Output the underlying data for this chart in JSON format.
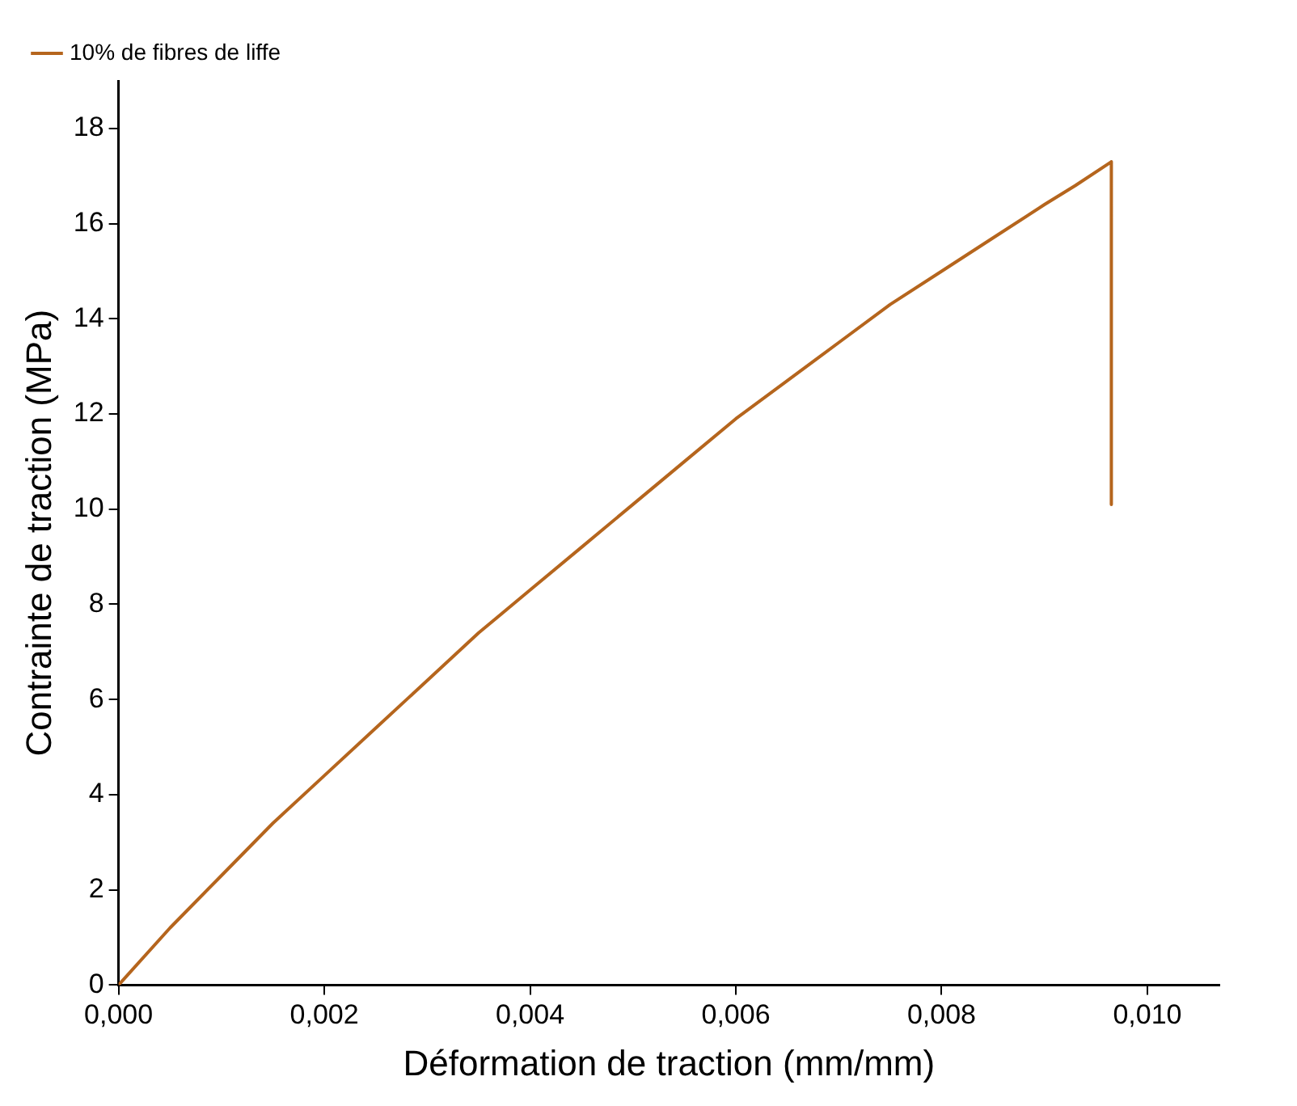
{
  "chart_data": {
    "type": "line",
    "xlabel": "Déformation de traction (mm/mm)",
    "ylabel": "Contrainte de traction (MPa)",
    "xlim": [
      0,
      0.0107
    ],
    "ylim": [
      0,
      19
    ],
    "xticks": [
      {
        "value": 0,
        "label": "0,000"
      },
      {
        "value": 0.002,
        "label": "0,002"
      },
      {
        "value": 0.004,
        "label": "0,004"
      },
      {
        "value": 0.006,
        "label": "0,006"
      },
      {
        "value": 0.008,
        "label": "0,008"
      },
      {
        "value": 0.01,
        "label": "0,010"
      }
    ],
    "yticks": [
      0,
      2,
      4,
      6,
      8,
      10,
      12,
      14,
      16,
      18
    ],
    "grid": false,
    "legend": "top left",
    "marker": "none",
    "line_style": "solid",
    "series": [
      {
        "name": "10% de fibres de liffe",
        "color": "#b5651d",
        "x": [
          0,
          0.0005,
          0.001,
          0.0015,
          0.002,
          0.0025,
          0.003,
          0.0035,
          0.004,
          0.0045,
          0.005,
          0.0055,
          0.006,
          0.0065,
          0.007,
          0.0075,
          0.008,
          0.0085,
          0.009,
          0.0093,
          0.00965,
          0.00965
        ],
        "values": [
          0,
          1.2,
          2.3,
          3.4,
          4.4,
          5.4,
          6.4,
          7.4,
          8.3,
          9.2,
          10.1,
          11.0,
          11.9,
          12.7,
          13.5,
          14.3,
          15.0,
          15.7,
          16.4,
          16.8,
          17.3,
          10.1
        ]
      }
    ]
  }
}
